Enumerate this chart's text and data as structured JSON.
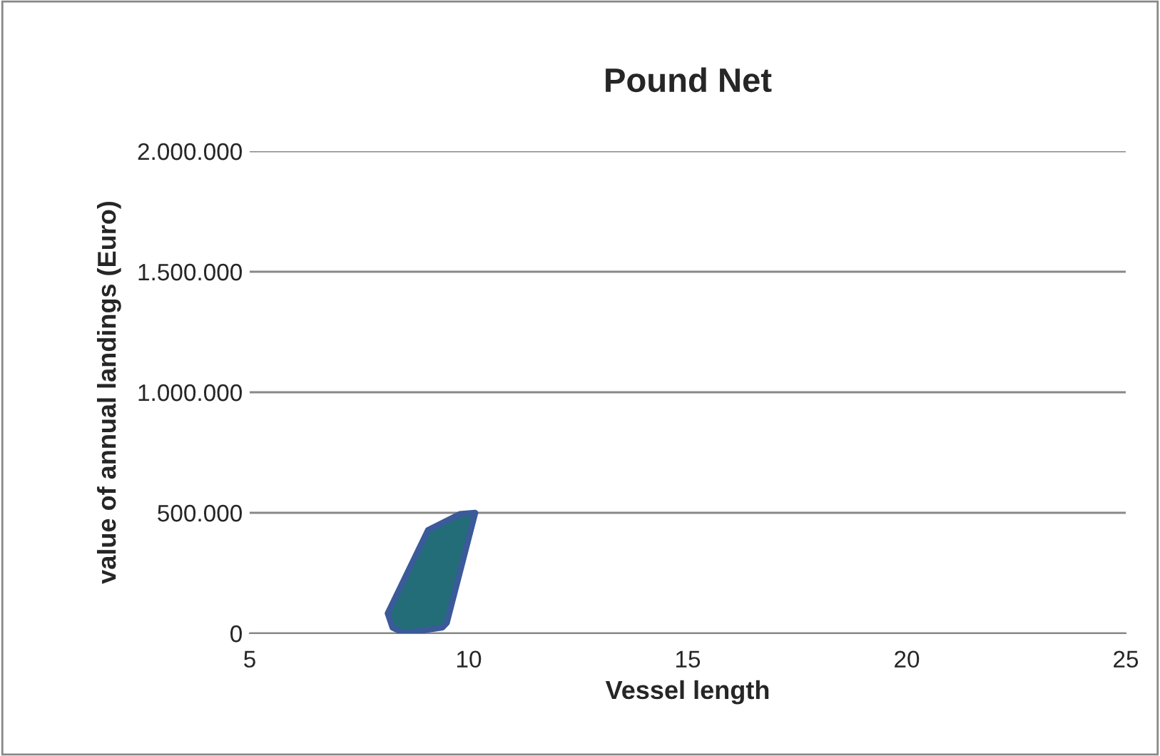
{
  "chart_data": {
    "type": "area",
    "title": "Pound Net",
    "xlabel": "Vessel length",
    "ylabel": "value of annual landings (Euro)",
    "series": [
      {
        "x": [
          10.15,
          9.8,
          9.07,
          8.15,
          8.26,
          8.53,
          9.4,
          9.5
        ],
        "values": [
          500000,
          495000,
          428000,
          83000,
          24000,
          0,
          24000,
          43000
        ],
        "color": "#236d78"
      }
    ],
    "xlim": [
      5,
      25
    ],
    "xticks": [
      5,
      10,
      15,
      20,
      25
    ],
    "ylim": [
      0,
      2000000
    ],
    "yticks": [
      {
        "value": 0,
        "label": "0"
      },
      {
        "value": 500000,
        "label": "500.000"
      },
      {
        "value": 1000000,
        "label": "1.000.000"
      },
      {
        "value": 1500000,
        "label": "1.500.000"
      },
      {
        "value": 2000000,
        "label": "2.000.000"
      }
    ],
    "grid": "y"
  }
}
